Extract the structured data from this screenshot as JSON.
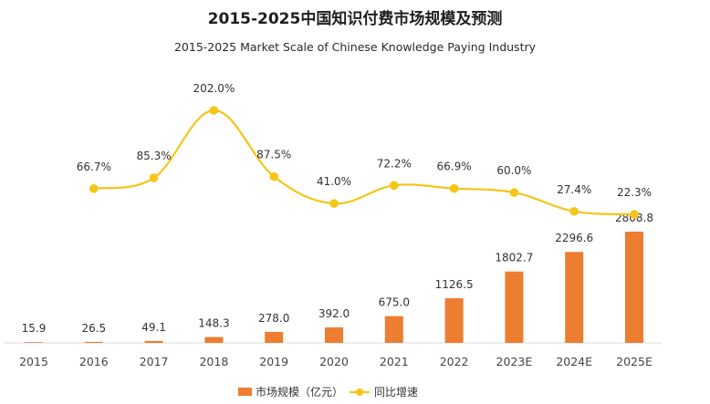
{
  "title": "2015-2025中国知识付费市场规模及预测",
  "subtitle": "2015-2025 Market Scale of Chinese Knowledge Paying Industry",
  "colors": {
    "bar": "#ED7D31",
    "line": "#F5C518",
    "axis": "#d9d9d9"
  },
  "chart_data": {
    "type": "bar",
    "title": "2015-2025中国知识付费市场规模及预测",
    "subtitle": "2015-2025 Market Scale of Chinese Knowledge Paying Industry",
    "categories": [
      "2015",
      "2016",
      "2017",
      "2018",
      "2019",
      "2020",
      "2021",
      "2022",
      "2023E",
      "2024E",
      "2025E"
    ],
    "series": [
      {
        "name": "市场规模（亿元）",
        "type": "bar",
        "values": [
          15.9,
          26.5,
          49.1,
          148.3,
          278.0,
          392.0,
          675.0,
          1126.5,
          1802.7,
          2296.6,
          2808.8
        ],
        "labels": [
          "15.9",
          "26.5",
          "49.1",
          "148.3",
          "278.0",
          "392.0",
          "675.0",
          "1126.5",
          "1802.7",
          "2296.6",
          "2808.8"
        ]
      },
      {
        "name": "同比增速",
        "type": "line",
        "values": [
          null,
          66.7,
          85.3,
          202.0,
          87.5,
          41.0,
          72.2,
          66.9,
          60.0,
          27.4,
          22.3
        ],
        "labels": [
          "",
          "66.7%",
          "85.3%",
          "202.0%",
          "87.5%",
          "41.0%",
          "72.2%",
          "66.9%",
          "60.0%",
          "27.4%",
          "22.3%"
        ]
      }
    ],
    "ylim_bar": [
      0,
      2808.8
    ],
    "ylim_line": [
      22.3,
      202.0
    ],
    "xlabel": "",
    "ylabel": "",
    "grid": false,
    "legend": "bottom-center"
  }
}
